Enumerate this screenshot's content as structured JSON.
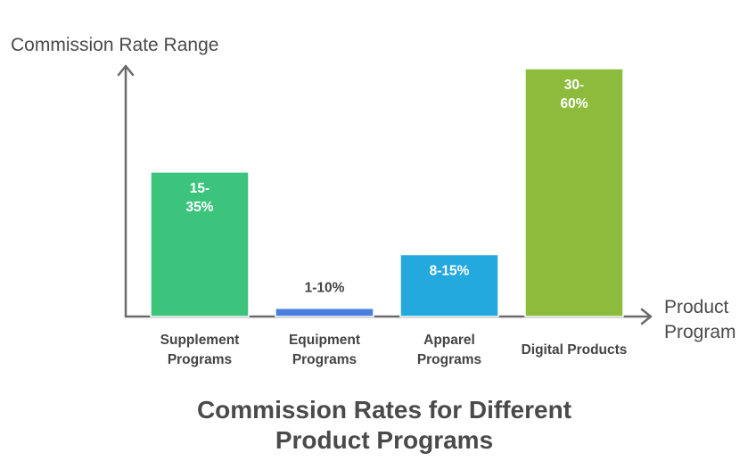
{
  "chart_data": {
    "type": "bar",
    "title_lines": [
      "Commission Rates for Different",
      "Product Programs"
    ],
    "ylabel": "Commission Rate Range",
    "xlabel_lines": [
      "Product",
      "Program"
    ],
    "ylim": [
      0,
      60
    ],
    "categories": [
      {
        "label_lines": [
          "Supplement",
          "Programs"
        ],
        "range": [
          15,
          35
        ],
        "value": 35,
        "label_lines_value": [
          "15-",
          "35%"
        ],
        "label_inside": true,
        "color": "#3cc47c"
      },
      {
        "label_lines": [
          "Equipment",
          "Programs"
        ],
        "range": [
          1,
          10
        ],
        "value": 2,
        "label_lines_value": [
          "1-10%"
        ],
        "label_inside": false,
        "color": "#4a7fe0"
      },
      {
        "label_lines": [
          "Apparel",
          "Programs"
        ],
        "range": [
          8,
          15
        ],
        "value": 15,
        "label_lines_value": [
          "8-15%"
        ],
        "label_inside": true,
        "color": "#24a9df"
      },
      {
        "label_lines": [
          "Digital Products"
        ],
        "range": [
          30,
          60
        ],
        "value": 60,
        "label_lines_value": [
          "30-",
          "60%"
        ],
        "label_inside": true,
        "color": "#8dbb3c"
      }
    ],
    "colors": {
      "axis": "#6b6b6b",
      "text": "#444444",
      "inside_label": "#ffffff"
    }
  }
}
